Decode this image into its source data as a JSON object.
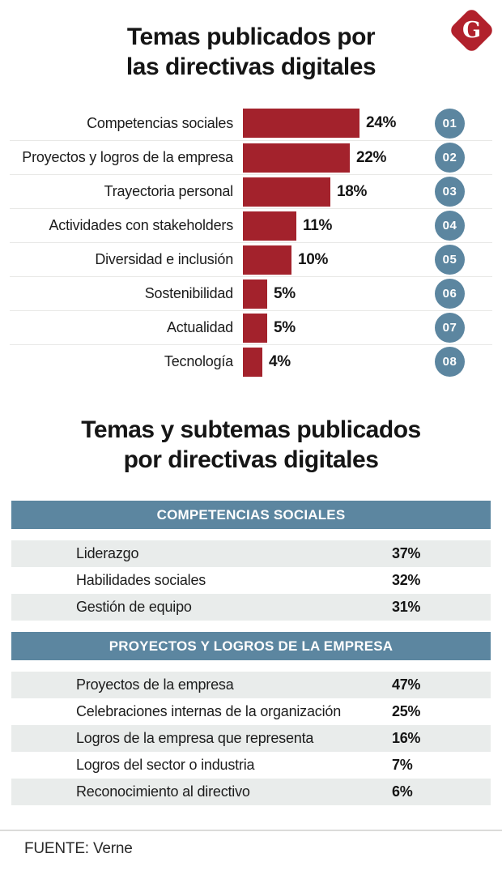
{
  "logo": {
    "letter": "G"
  },
  "header": {
    "title_line1": "Temas publicados por",
    "title_line2": "las directivas digitales"
  },
  "section2": {
    "title_line1": "Temas y subtemas publicados",
    "title_line2": "por directivas digitales"
  },
  "footer": {
    "source": "FUENTE: Verne"
  },
  "colors": {
    "bar_red": "#A3222C",
    "logo_red": "#B1212C",
    "slate_blue": "#5C86A0",
    "row_gray": "#E9ECEB",
    "separator": "#E8E8E6"
  },
  "chart_data": [
    {
      "type": "bar",
      "orientation": "horizontal",
      "title": "Temas publicados por las directivas digitales",
      "categories": [
        "Competencias sociales",
        "Proyectos y logros de la empresa",
        "Trayectoria personal",
        "Actividades con stakeholders",
        "Diversidad e inclusión",
        "Sostenibilidad",
        "Actualidad",
        "Tecnología"
      ],
      "values": [
        24,
        22,
        18,
        11,
        10,
        5,
        5,
        4
      ],
      "value_labels": [
        "24%",
        "22%",
        "18%",
        "11%",
        "10%",
        "5%",
        "5%",
        "4%"
      ],
      "rank_badges": [
        "01",
        "02",
        "03",
        "04",
        "05",
        "06",
        "07",
        "08"
      ],
      "unit": "%",
      "xlim": [
        0,
        25
      ],
      "grid": false,
      "legend": false
    },
    {
      "type": "table",
      "title": "Temas y subtemas publicados por directivas digitales",
      "sections": [
        {
          "header": "COMPETENCIAS SOCIALES",
          "rows": [
            {
              "label": "Liderazgo",
              "value": "37%"
            },
            {
              "label": "Habilidades sociales",
              "value": "32%"
            },
            {
              "label": "Gestión de equipo",
              "value": "31%"
            }
          ]
        },
        {
          "header": "PROYECTOS Y LOGROS DE LA EMPRESA",
          "rows": [
            {
              "label": "Proyectos de la empresa",
              "value": "47%"
            },
            {
              "label": "Celebraciones internas de la organización",
              "value": "25%"
            },
            {
              "label": "Logros de la empresa que representa",
              "value": "16%"
            },
            {
              "label": "Logros del sector o industria",
              "value": "7%"
            },
            {
              "label": "Reconocimiento al directivo",
              "value": "6%"
            }
          ]
        }
      ]
    }
  ]
}
